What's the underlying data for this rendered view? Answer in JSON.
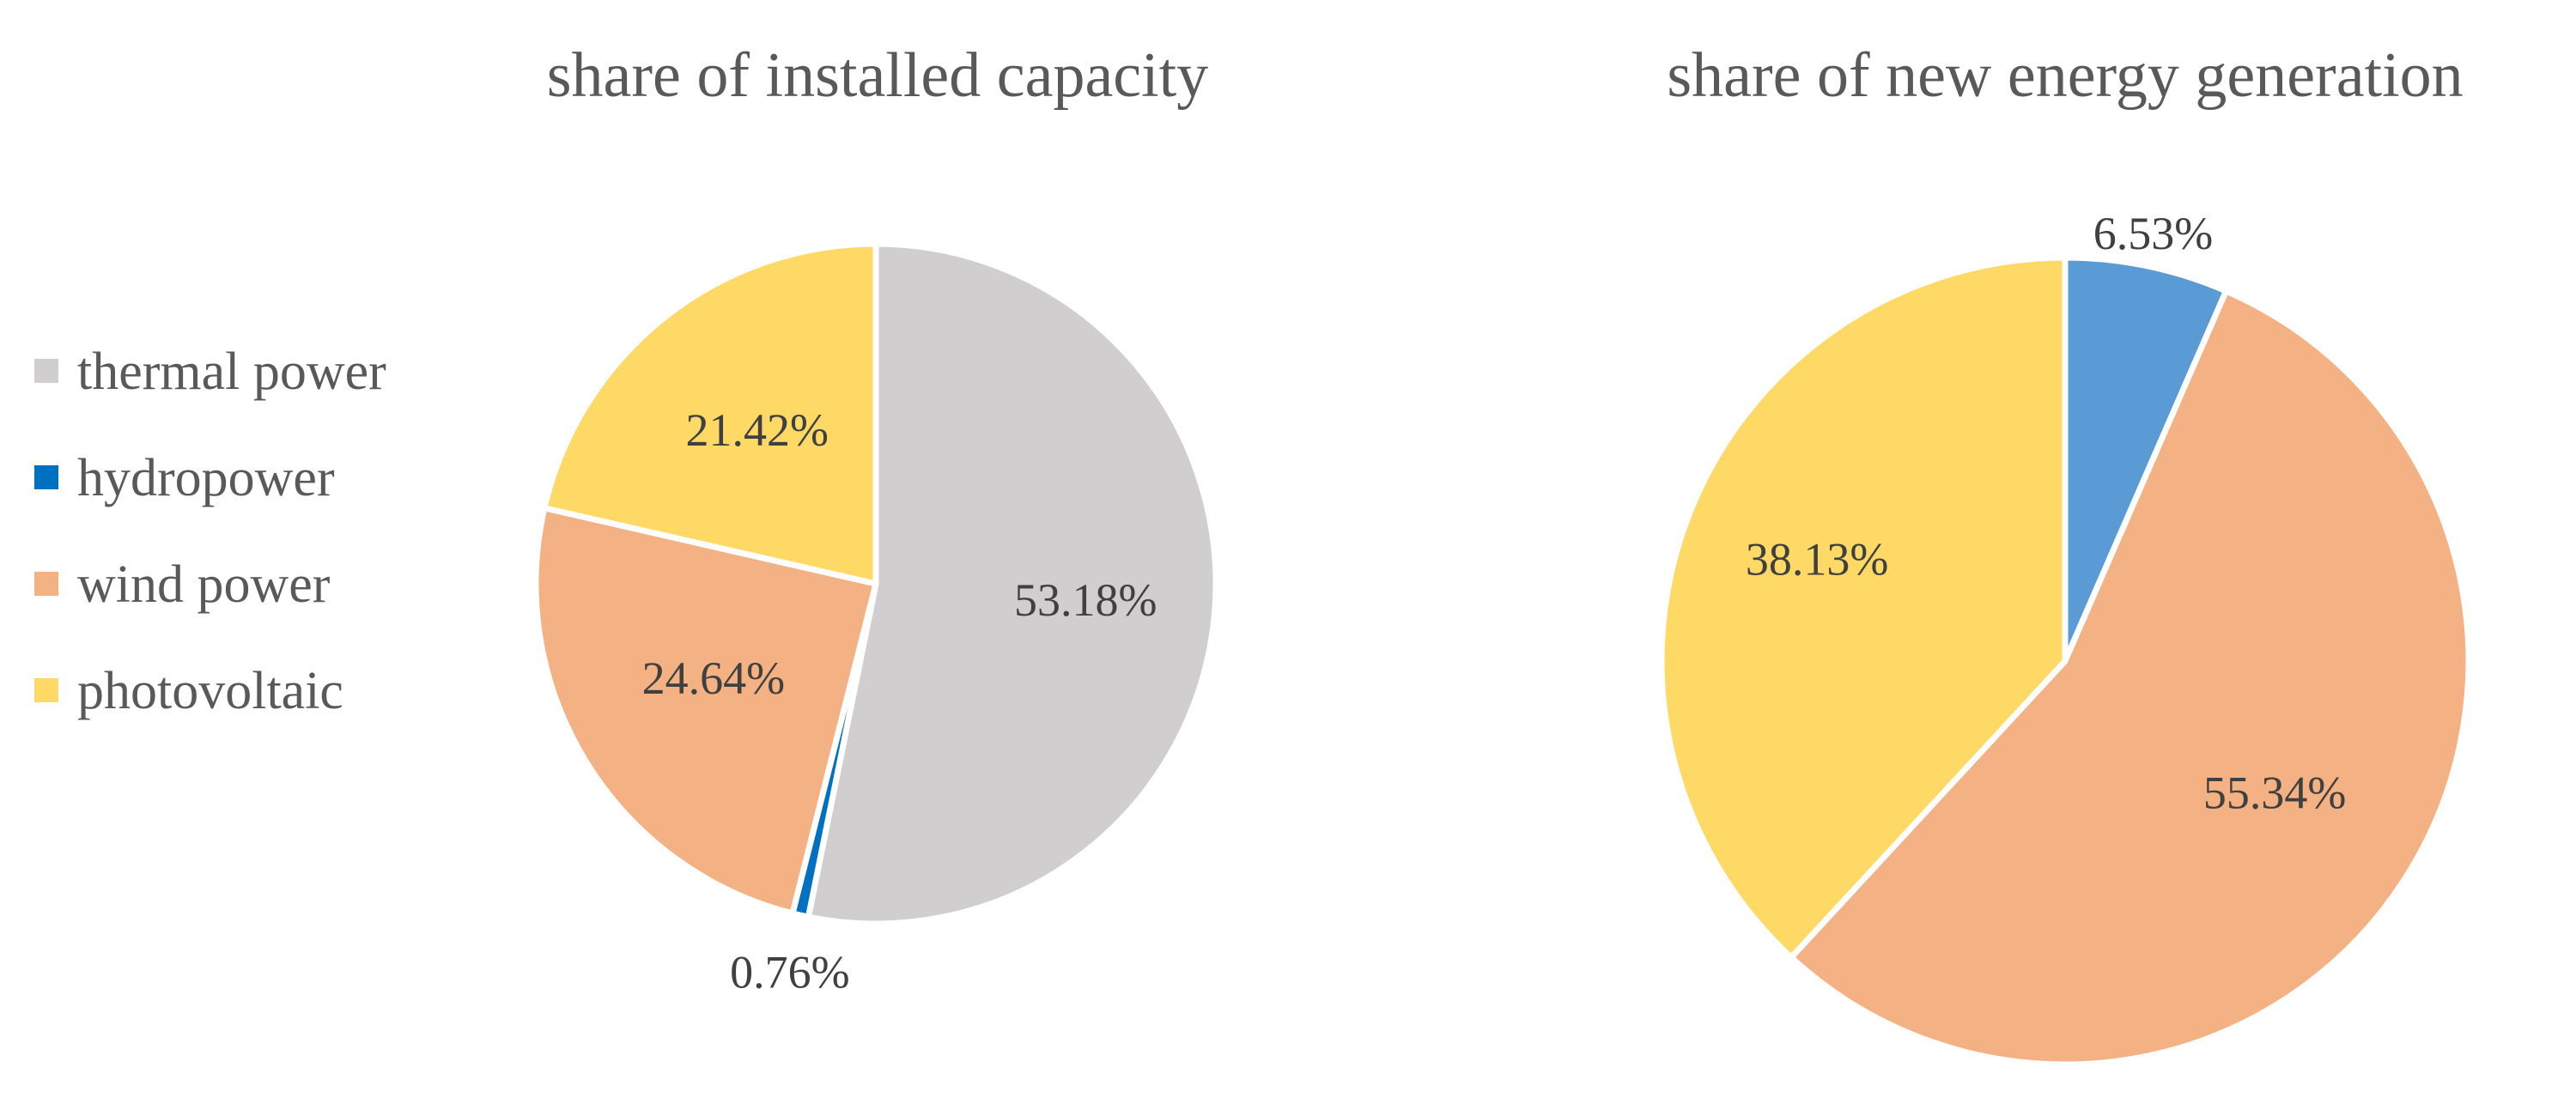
{
  "chart_data": [
    {
      "type": "pie",
      "title": "share of installed capacity",
      "categories": [
        "thermal power",
        "hydropower",
        "wind power",
        "photovoltaic"
      ],
      "values": [
        53.18,
        0.76,
        24.64,
        21.42
      ],
      "labels": [
        "53.18%",
        "0.76%",
        "24.64%",
        "21.42%"
      ],
      "colors": [
        "#D0CECE",
        "#0070C0",
        "#F4B183",
        "#FFD966"
      ],
      "start": "12 o'clock",
      "direction": "clockwise"
    },
    {
      "type": "pie",
      "title": "share of new energy generation",
      "categories": [
        "hydropower",
        "wind power",
        "photovoltaic"
      ],
      "values": [
        6.53,
        55.34,
        38.13
      ],
      "labels": [
        "6.53%",
        "55.34%",
        "38.13%"
      ],
      "colors": [
        "#5B9BD5",
        "#F4B183",
        "#FFD966"
      ],
      "start": "12 o'clock",
      "direction": "clockwise"
    }
  ],
  "legend": {
    "placement": "left",
    "items": [
      {
        "label": "thermal power",
        "color": "#D0CECE"
      },
      {
        "label": "hydropower",
        "color": "#0070C0"
      },
      {
        "label": "wind power",
        "color": "#F4B183"
      },
      {
        "label": "photovoltaic",
        "color": "#FFD966"
      }
    ]
  }
}
